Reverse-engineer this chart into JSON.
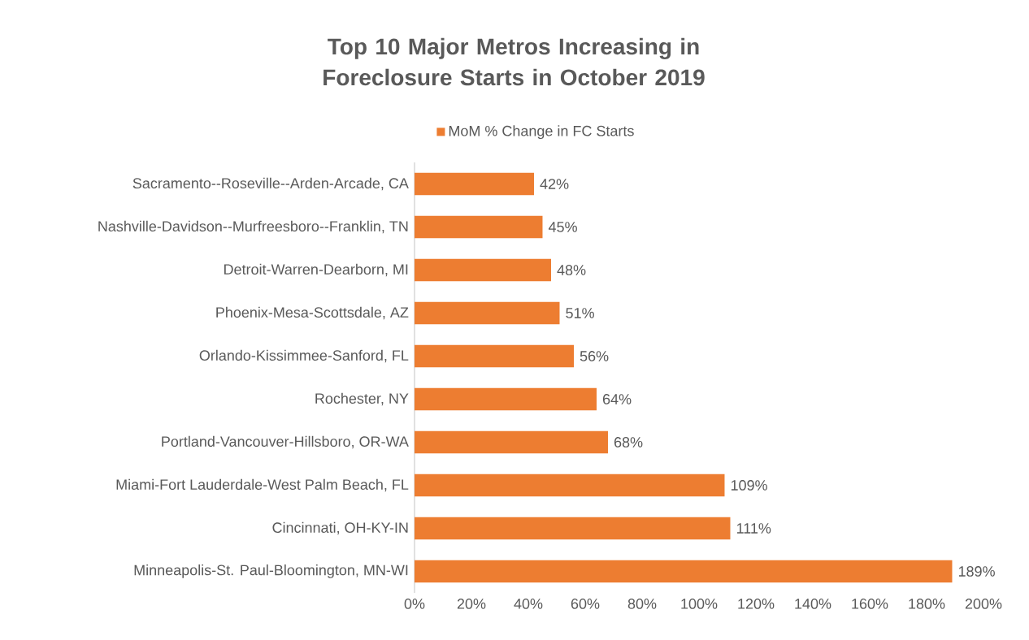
{
  "chart_data": {
    "type": "bar",
    "orientation": "horizontal",
    "title": "Top 10 Major Metros Increasing in Foreclosure Starts in October 2019",
    "categories": [
      "Sacramento--Roseville--Arden-Arcade, CA",
      "Nashville-Davidson--Murfreesboro--Franklin, TN",
      "Detroit-Warren-Dearborn, MI",
      "Phoenix-Mesa-Scottsdale, AZ",
      "Orlando-Kissimmee-Sanford, FL",
      "Rochester, NY",
      "Portland-Vancouver-Hillsboro, OR-WA",
      "Miami-Fort Lauderdale-West Palm Beach, FL",
      "Cincinnati, OH-KY-IN",
      "Minneapolis-St. Paul-Bloomington, MN-WI"
    ],
    "series": [
      {
        "name": "MoM % Change in FC Starts",
        "color": "#ed7d31",
        "values": [
          42,
          45,
          48,
          51,
          56,
          64,
          68,
          109,
          111,
          189
        ],
        "value_labels": [
          "42%",
          "45%",
          "48%",
          "51%",
          "56%",
          "64%",
          "68%",
          "109%",
          "111%",
          "189%"
        ]
      }
    ],
    "xlim": [
      0,
      200
    ],
    "xticks": [
      {
        "value": 0,
        "label": "0%"
      },
      {
        "value": 20,
        "label": "20%"
      },
      {
        "value": 40,
        "label": "40%"
      },
      {
        "value": 60,
        "label": "60%"
      },
      {
        "value": 80,
        "label": "80%"
      },
      {
        "value": 100,
        "label": "100%"
      },
      {
        "value": 120,
        "label": "120%"
      },
      {
        "value": 140,
        "label": "140%"
      },
      {
        "value": 160,
        "label": "160%"
      },
      {
        "value": 180,
        "label": "180%"
      },
      {
        "value": 200,
        "label": "200%"
      }
    ],
    "legend": "top",
    "grid": false
  }
}
